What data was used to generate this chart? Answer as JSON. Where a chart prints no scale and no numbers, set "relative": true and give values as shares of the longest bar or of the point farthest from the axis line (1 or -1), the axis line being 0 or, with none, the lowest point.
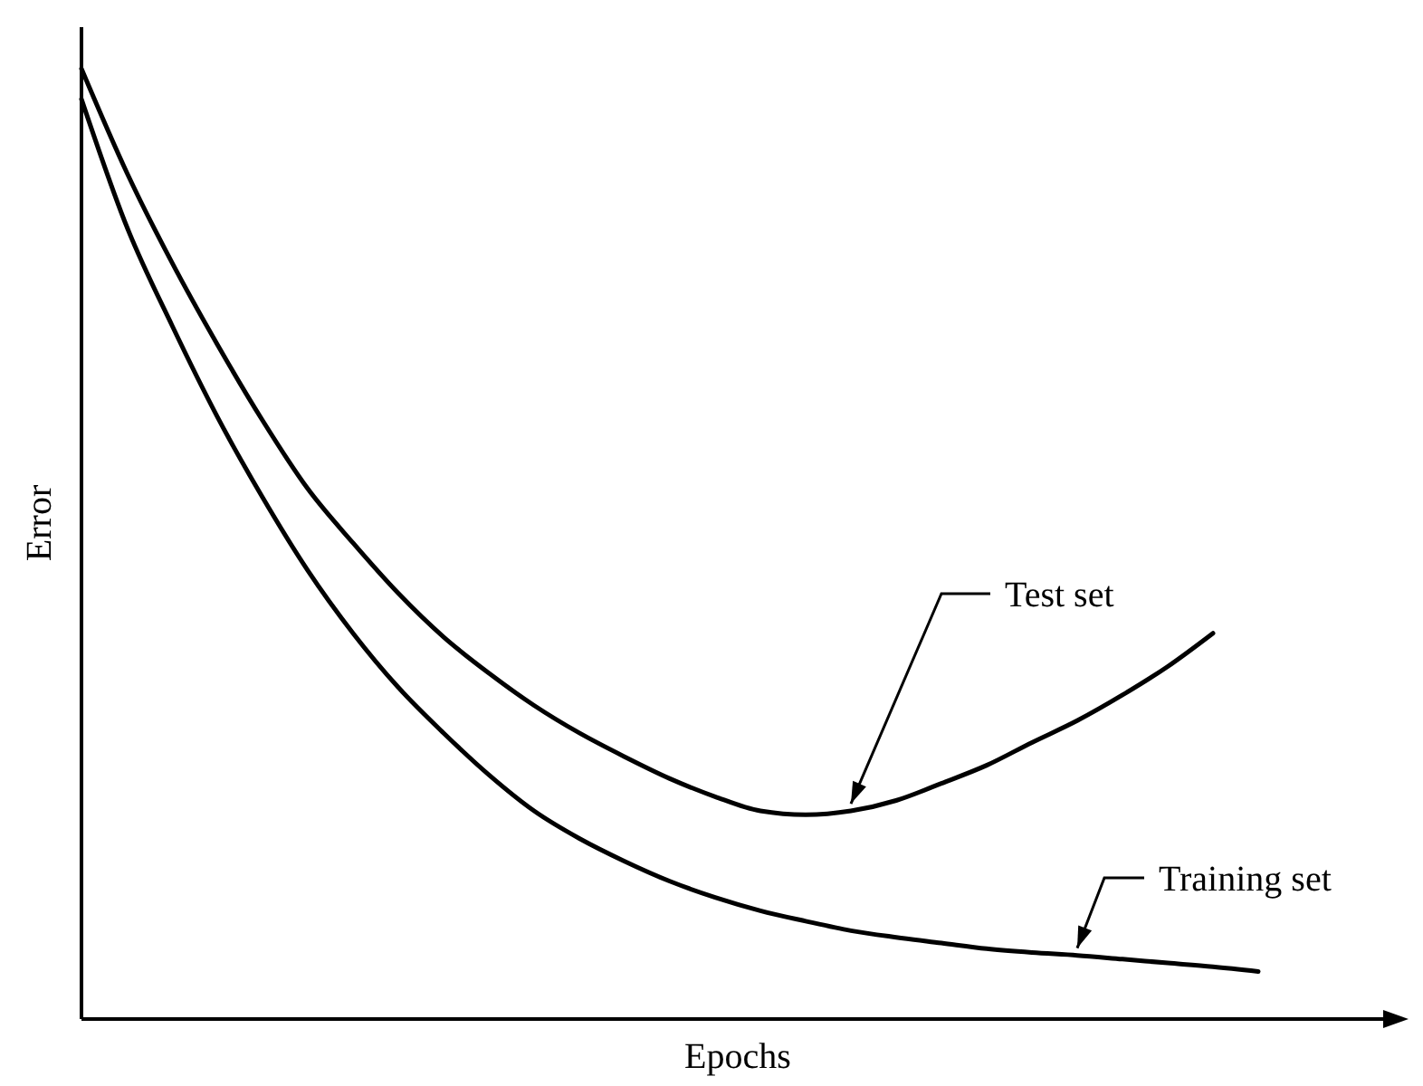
{
  "chart_data": {
    "type": "line",
    "relative": true,
    "xlabel": "Epochs",
    "ylabel": "Error",
    "marker": "none",
    "line_style": "solid",
    "categories": [
      null,
      null,
      null,
      null,
      null,
      null,
      null,
      null,
      null,
      null,
      null,
      null,
      null,
      null,
      null,
      null,
      null,
      null,
      null,
      null,
      null,
      null,
      null,
      null,
      null,
      null,
      null,
      null,
      null,
      null
    ],
    "series": [
      {
        "name": "Test set",
        "color": "#000000",
        "values": [
          1.0,
          0.891,
          0.796,
          0.71,
          0.63,
          0.558,
          0.501,
          0.448,
          0.402,
          0.364,
          0.33,
          0.301,
          0.276,
          0.253,
          0.234,
          0.219,
          0.215,
          0.219,
          0.23,
          0.248,
          0.267,
          0.291,
          0.314,
          0.341,
          0.371,
          0.406,
          null,
          null,
          null,
          null
        ]
      },
      {
        "name": "Training set",
        "color": "#000000",
        "values": [
          0.968,
          0.834,
          0.73,
          0.634,
          0.549,
          0.472,
          0.406,
          0.349,
          0.301,
          0.257,
          0.219,
          0.19,
          0.166,
          0.145,
          0.128,
          0.114,
          0.103,
          0.093,
          0.086,
          0.08,
          0.074,
          0.07,
          0.067,
          0.063,
          0.059,
          0.055,
          0.05,
          null,
          null,
          null
        ]
      }
    ]
  }
}
